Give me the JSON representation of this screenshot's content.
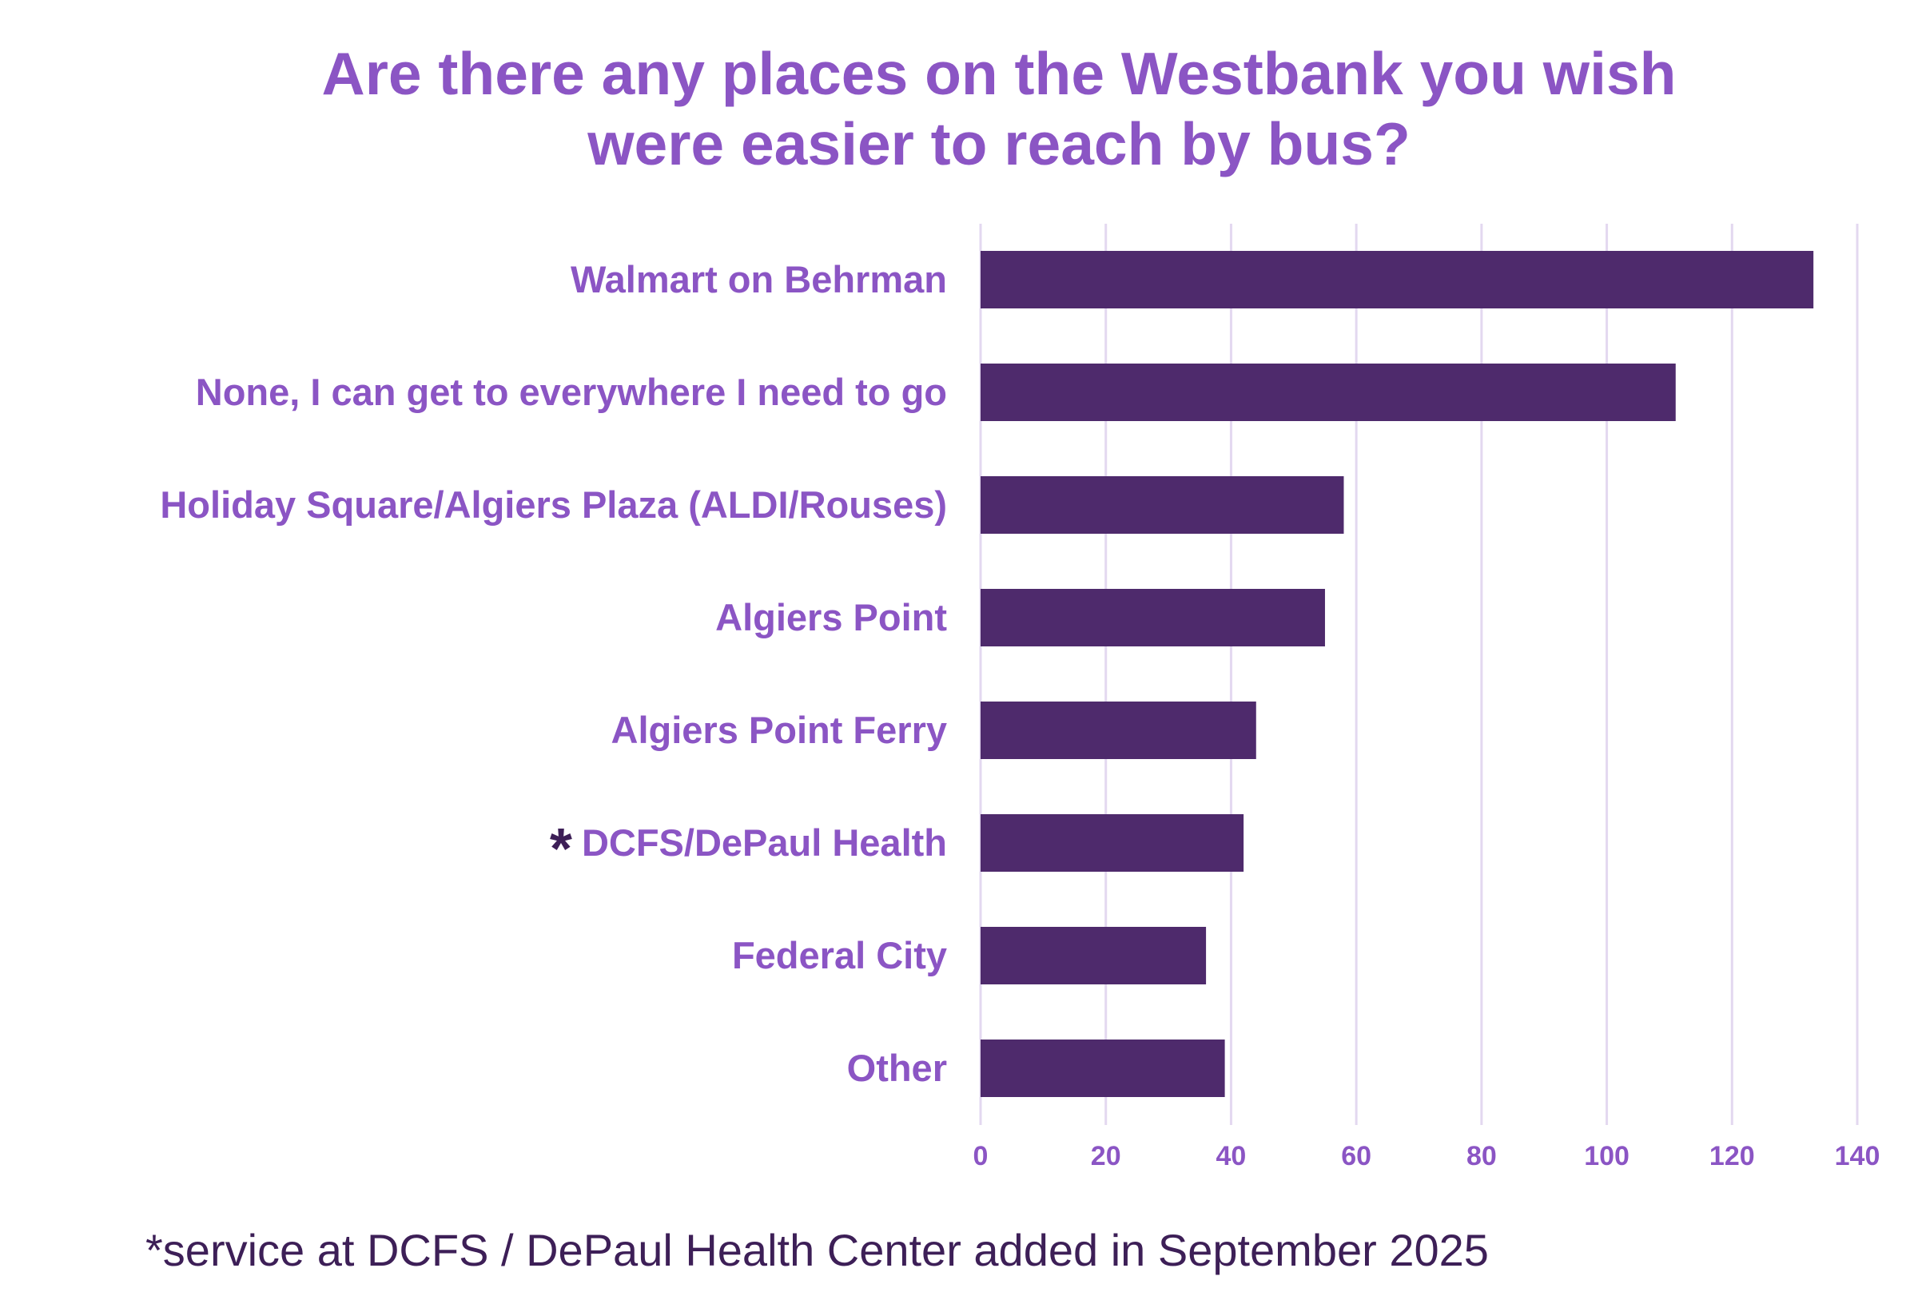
{
  "colors": {
    "title": "#8b55c4",
    "category_label": "#8b55c4",
    "tick_label": "#8b55c4",
    "bar": "#4e2a6c",
    "gridline": "#e3d8f0",
    "asterisk": "#3d1f57",
    "footnote": "#3d1f57",
    "background": "#ffffff"
  },
  "chart_data": {
    "type": "bar",
    "orientation": "horizontal",
    "title_lines": [
      "Are there any places on the Westbank you wish",
      "were easier to reach by bus?"
    ],
    "xlabel": "",
    "ylabel": "",
    "categories": [
      "Walmart on Behrman",
      "None, I can get to everywhere I need to go",
      "Holiday Square/Algiers Plaza (ALDI/Rouses)",
      "Algiers Point",
      "Algiers Point Ferry",
      "DCFS/DePaul Health",
      "Federal City",
      "Other"
    ],
    "values": [
      133,
      111,
      58,
      55,
      44,
      42,
      36,
      39
    ],
    "category_markers": [
      "",
      "",
      "",
      "",
      "",
      "*",
      "",
      ""
    ],
    "xlim": [
      0,
      140
    ],
    "x_ticks": [
      0,
      20,
      40,
      60,
      80,
      100,
      120,
      140
    ],
    "grid": "vertical",
    "legend": "none"
  },
  "footnote": "*service at DCFS / DePaul Health Center added in September 2025"
}
